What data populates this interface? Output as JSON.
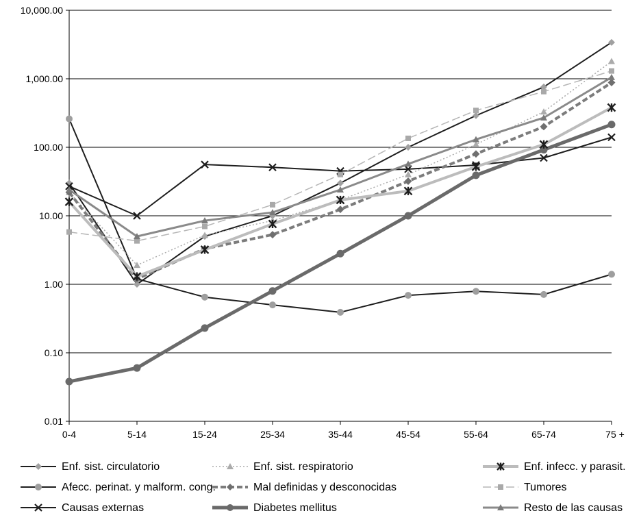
{
  "chart_data": {
    "type": "line",
    "title": "",
    "xlabel": "",
    "ylabel": "",
    "y_scale": "log",
    "ylim": [
      0.01,
      10000
    ],
    "y_ticks": [
      "10,000.00",
      "1,000.00",
      "100.00",
      "10.00",
      "1.00",
      "0.10",
      "0.01"
    ],
    "grid": "horizontal",
    "legend_position": "bottom",
    "categories": [
      "0-4",
      "5-14",
      "15-24",
      "25-34",
      "35-44",
      "45-54",
      "55-64",
      "65-74",
      "75 +"
    ],
    "series": [
      {
        "name": "Enf. sist. circulatorio",
        "values": [
          30,
          1,
          5,
          10,
          30,
          100,
          290,
          760,
          3400
        ],
        "color": "#a0a0a0",
        "line_color": "#1e1e1e",
        "marker": "diamond",
        "dash": "solid",
        "width": 2
      },
      {
        "name": "Afecc. perinat. y malform. cong.",
        "values": [
          260,
          1.2,
          0.65,
          0.5,
          0.39,
          0.69,
          0.79,
          0.71,
          1.4
        ],
        "color": "#9e9e9e",
        "line_color": "#1e1e1e",
        "marker": "circle",
        "dash": "solid",
        "width": 2
      },
      {
        "name": "Causas externas",
        "values": [
          27,
          10,
          56,
          51,
          45,
          48,
          55,
          70,
          140
        ],
        "color": "#1e1e1e",
        "line_color": "#1e1e1e",
        "marker": "x",
        "dash": "solid",
        "width": 2
      },
      {
        "name": "Enf. sist. respiratorio",
        "values": [
          22,
          1.9,
          5.2,
          8.5,
          17,
          40,
          110,
          330,
          1800
        ],
        "color": "#ababab",
        "line_color": "#ababab",
        "marker": "triangle",
        "dash": "dotted",
        "width": 1.5
      },
      {
        "name": "Mal definidas y desconocidas",
        "values": [
          22,
          1.2,
          3.3,
          5.3,
          12.4,
          32,
          80,
          200,
          880
        ],
        "color": "#6f6f6f",
        "line_color": "#7c7c7c",
        "marker": "diamond",
        "dash": "dashed",
        "width": 4
      },
      {
        "name": "Diabetes mellitus",
        "values": [
          0.038,
          0.06,
          0.23,
          0.8,
          2.8,
          10,
          39,
          92,
          215
        ],
        "color": "#6a6a6a",
        "line_color": "#6a6a6a",
        "marker": "circle",
        "dash": "solid",
        "width": 5
      },
      {
        "name": "Enf. infecc. y parasit.",
        "values": [
          16,
          1.3,
          3.2,
          7.6,
          17,
          23,
          52,
          110,
          380
        ],
        "color": "#1e1e1e",
        "line_color": "#bcbcbc",
        "marker": "asterisk",
        "dash": "solid",
        "width": 4
      },
      {
        "name": "Tumores",
        "values": [
          5.8,
          4.3,
          7,
          14.5,
          40,
          135,
          345,
          650,
          1300
        ],
        "color": "#a9a9a9",
        "line_color": "#b6b6b6",
        "marker": "square",
        "dash": "longdash",
        "width": 1.5
      },
      {
        "name": "Resto de las causas",
        "values": [
          24,
          5,
          8.5,
          11.2,
          24,
          57,
          130,
          270,
          1050
        ],
        "color": "#7a7a7a",
        "line_color": "#8a8a8a",
        "marker": "triangle",
        "dash": "solid",
        "width": 3
      }
    ]
  }
}
